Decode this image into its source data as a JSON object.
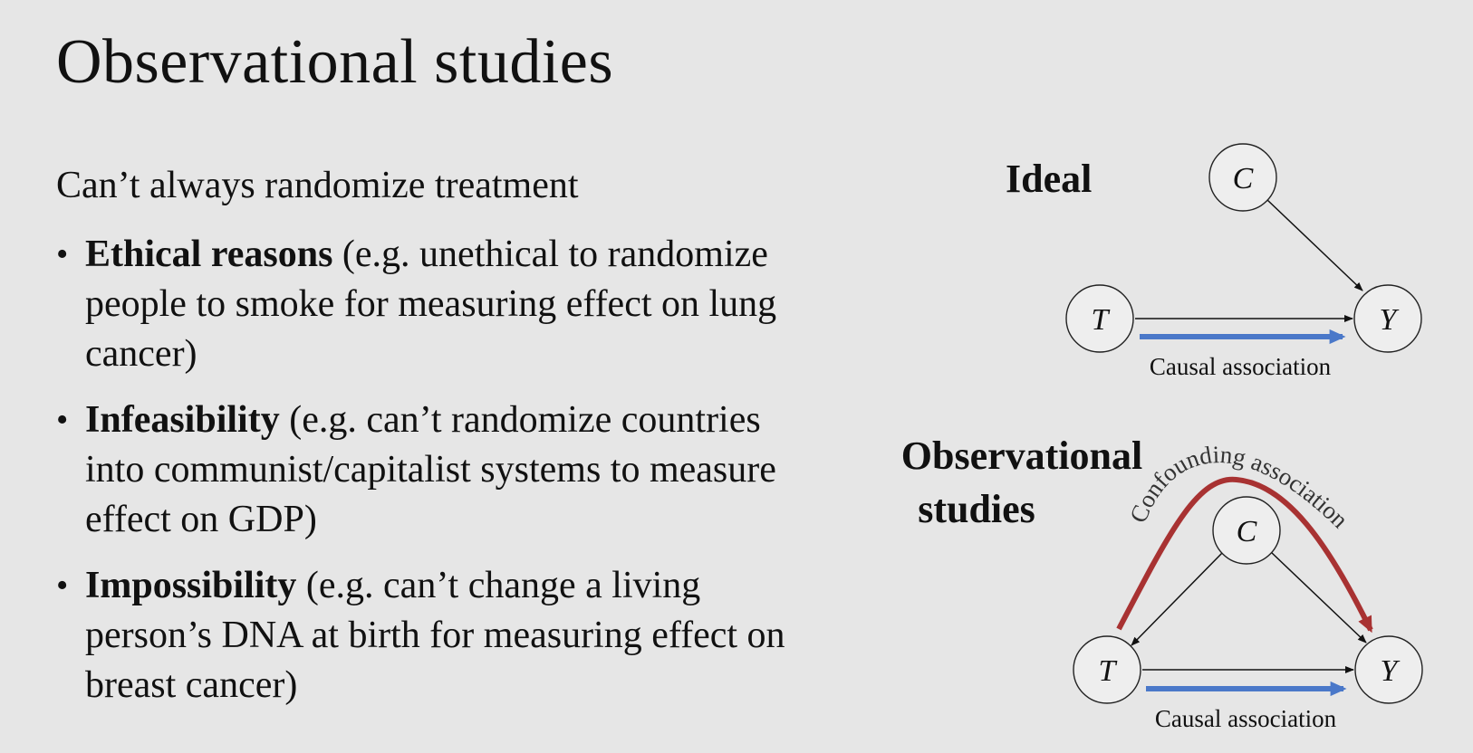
{
  "slide": {
    "title": "Observational studies",
    "subtitle": "Can’t always randomize treatment",
    "bullets": [
      {
        "bold": "Ethical reasons",
        "rest": " (e.g. unethical to randomize people to smoke for measuring effect on lung cancer)"
      },
      {
        "bold": "Infeasibility",
        "rest": " (e.g. can’t randomize countries into communist/capitalist systems to measure effect on GDP)"
      },
      {
        "bold": "Impossibility",
        "rest": " (e.g. can’t change a living person’s DNA at birth for measuring effect on breast cancer)"
      }
    ]
  },
  "diagram": {
    "ideal": {
      "heading": "Ideal",
      "nodes": {
        "C": "C",
        "T": "T",
        "Y": "Y"
      },
      "edges": [
        [
          "C",
          "Y"
        ],
        [
          "T",
          "Y"
        ]
      ],
      "causal_label": "Causal association"
    },
    "observational": {
      "heading_line1": "Observational",
      "heading_line2": "studies",
      "nodes": {
        "C": "C",
        "T": "T",
        "Y": "Y"
      },
      "edges": [
        [
          "C",
          "T"
        ],
        [
          "C",
          "Y"
        ],
        [
          "T",
          "Y"
        ]
      ],
      "causal_label": "Causal association",
      "confounding_label": "Confounding association"
    }
  },
  "colors": {
    "background": "#e6e6e6",
    "causal_arrow": "#4a78c9",
    "confounding_arrow": "#a83232",
    "node_stroke": "#222222"
  }
}
